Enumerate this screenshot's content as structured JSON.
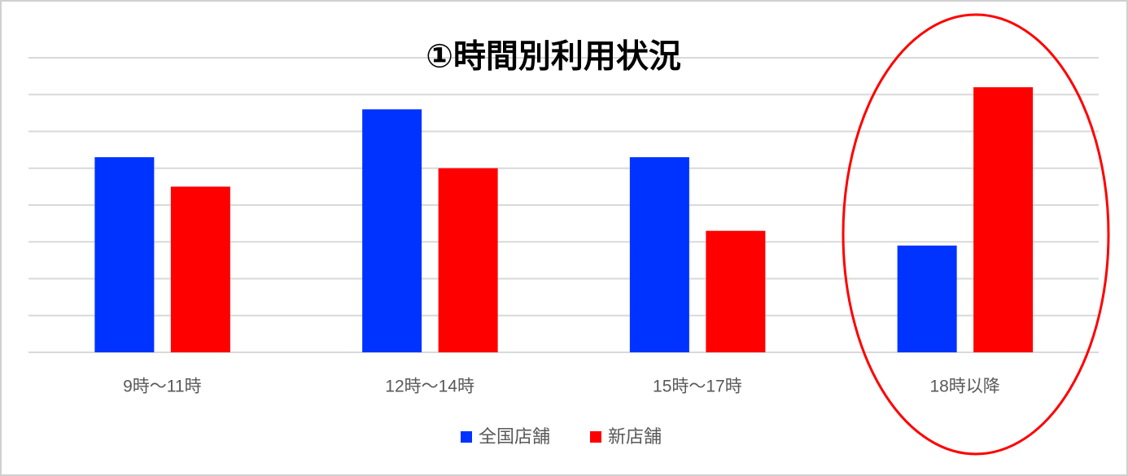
{
  "chart_data": {
    "type": "bar",
    "title": "①時間別利用状況",
    "categories": [
      "9時～11時",
      "12時～14時",
      "15時～17時",
      "18時以降"
    ],
    "series": [
      {
        "name": "全国店舗",
        "color": "#0033ff",
        "values": [
          5.3,
          6.6,
          5.3,
          2.9
        ]
      },
      {
        "name": "新店舗",
        "color": "#ff0000",
        "values": [
          4.5,
          5.0,
          3.3,
          7.2
        ]
      }
    ],
    "ylim": [
      0,
      8
    ],
    "yticks": [
      0,
      1,
      2,
      3,
      4,
      5,
      6,
      7,
      8
    ],
    "grid": true
  }
}
